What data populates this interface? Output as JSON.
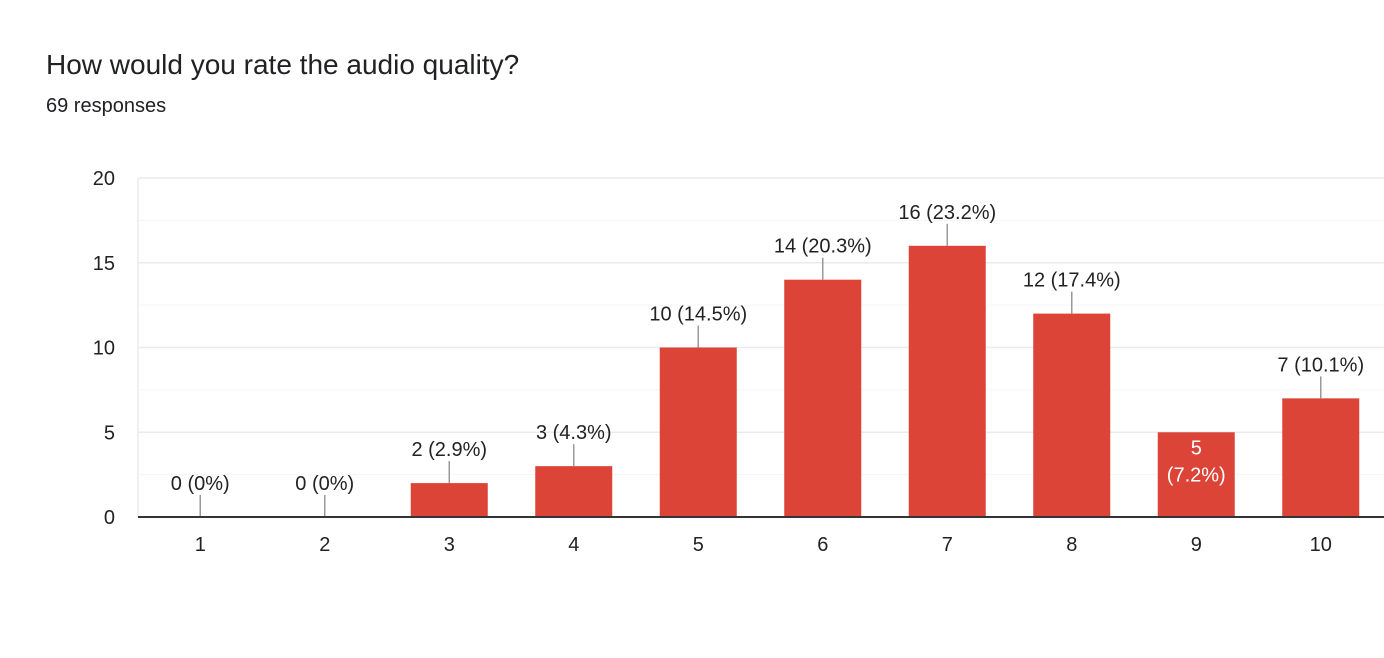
{
  "question": {
    "title": "How would you rate the audio quality?",
    "responses": "69 responses"
  },
  "colors": {
    "bar": "#db4437",
    "gridline": "#ebebeb",
    "minor_gridline": "#f5f5f5",
    "axis": "#333333",
    "leader": "#999999",
    "label": "#222222",
    "inside_label": "#ffffff"
  },
  "chart_data": {
    "type": "bar",
    "categories": [
      "1",
      "2",
      "3",
      "4",
      "5",
      "6",
      "7",
      "8",
      "9",
      "10"
    ],
    "values": [
      0,
      0,
      2,
      3,
      10,
      14,
      16,
      12,
      5,
      7
    ],
    "data_labels": [
      "0 (0%)",
      "0 (0%)",
      "2 (2.9%)",
      "3 (4.3%)",
      "10 (14.5%)",
      "14 (20.3%)",
      "16 (23.2%)",
      "12 (17.4%)",
      "5 (7.2%)",
      "7 (10.1%)"
    ],
    "yticks": [
      0,
      5,
      10,
      15,
      20
    ],
    "ylim": [
      0,
      20
    ],
    "grid": true
  }
}
